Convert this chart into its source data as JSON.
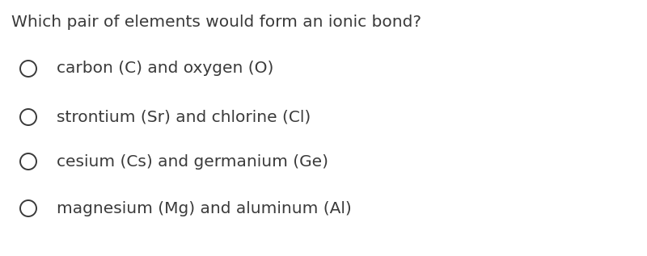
{
  "title": "Which pair of elements would form an ionic bond?",
  "options": [
    "carbon (C) and oxygen (O)",
    "strontium (Sr) and chlorine (Cl)",
    "cesium (Cs) and germanium (Ge)",
    "magnesium (Mg) and aluminum (Al)"
  ],
  "background_color": "#ffffff",
  "text_color": "#3a3a3a",
  "title_fontsize": 14.5,
  "option_fontsize": 14.5,
  "font_family": "DejaVu Sans"
}
